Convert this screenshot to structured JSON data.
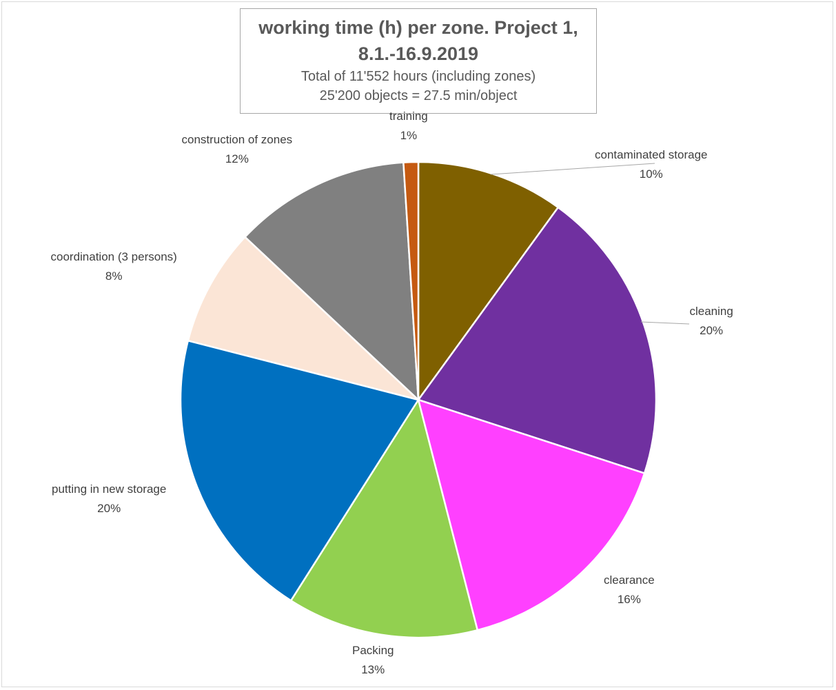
{
  "chart_data": {
    "type": "pie",
    "title": "working time (h) per zone. Project 1,",
    "title_line2": "8.1.-16.9.2019",
    "subtitle_line1": "Total of 11'552 hours (including zones)",
    "subtitle_line2": "25'200 objects = 27.5 min/object",
    "slices": [
      {
        "label": "contaminated storage",
        "value": 10,
        "value_label": "10%",
        "color": "#7f6000"
      },
      {
        "label": "cleaning",
        "value": 20,
        "value_label": "20%",
        "color": "#7030a0"
      },
      {
        "label": "clearance",
        "value": 16,
        "value_label": "16%",
        "color": "#ff40ff"
      },
      {
        "label": "Packing",
        "value": 13,
        "value_label": "13%",
        "color": "#92d050"
      },
      {
        "label": "putting in new storage",
        "value": 20,
        "value_label": "20%",
        "color": "#0070c0"
      },
      {
        "label": "coordination (3 persons)",
        "value": 8,
        "value_label": "8%",
        "color": "#fbe5d6"
      },
      {
        "label": "construction of zones",
        "value": 12,
        "value_label": "12%",
        "color": "#808080"
      },
      {
        "label": "training",
        "value": 1,
        "value_label": "1%",
        "color": "#c55a11"
      }
    ],
    "start_angle": "12 o'clock",
    "direction": "clockwise",
    "legend": "none"
  }
}
